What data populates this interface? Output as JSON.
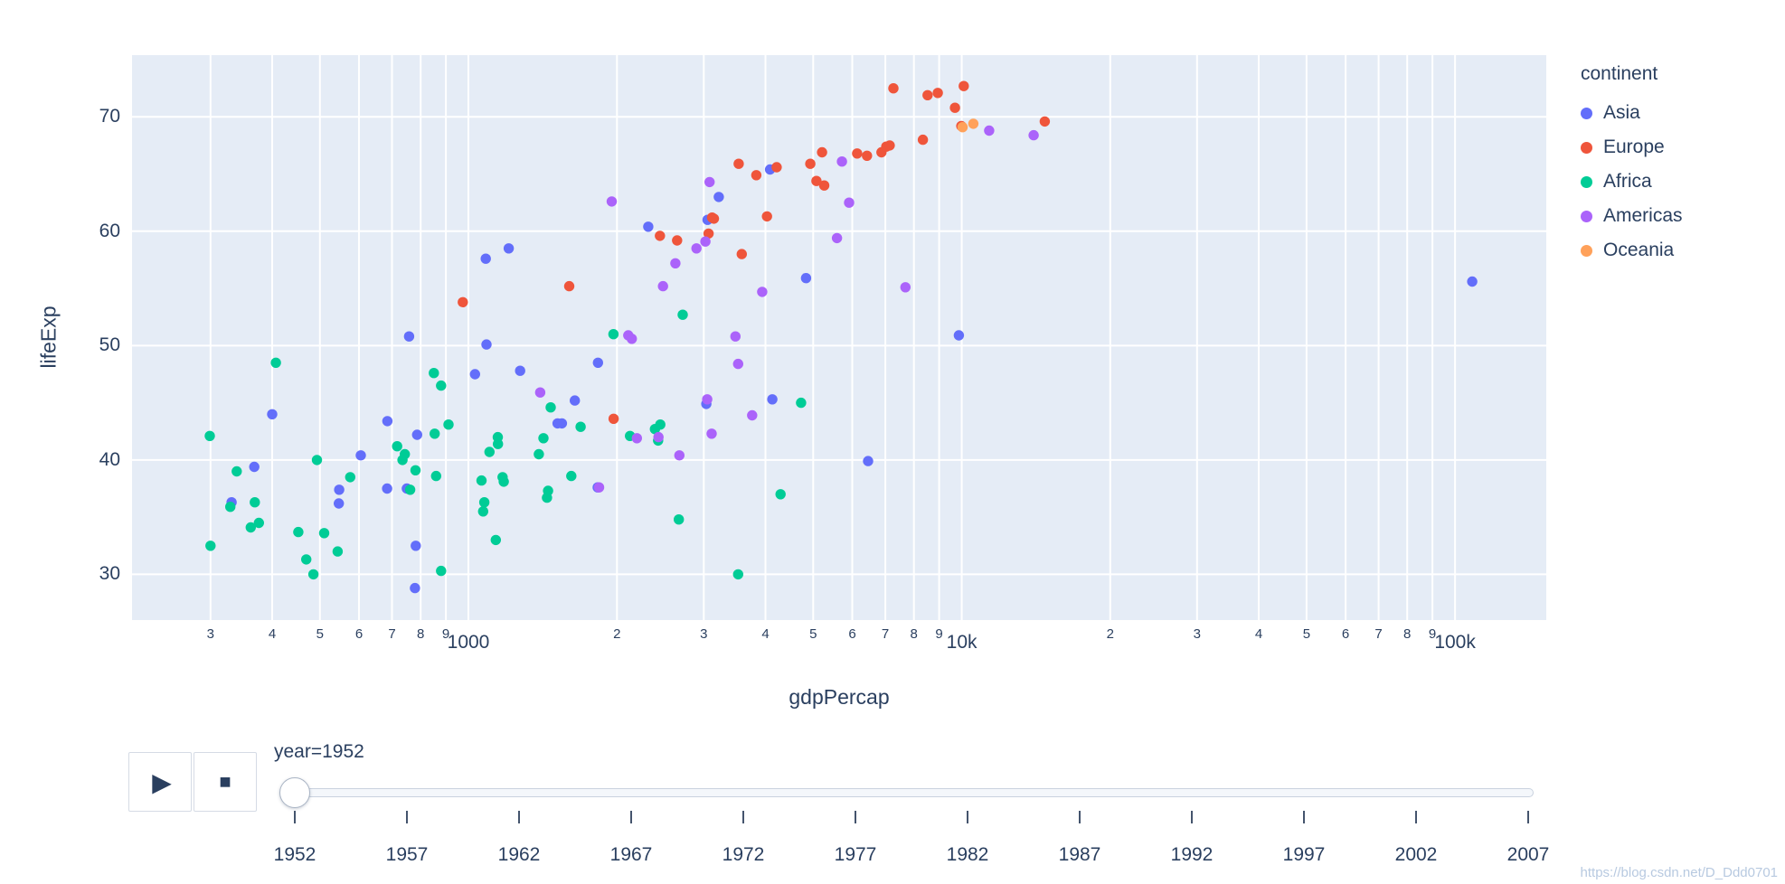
{
  "chart_data": {
    "type": "scatter",
    "title": "",
    "xlabel": "gdpPercap",
    "ylabel": "lifeExp",
    "x_scale": "log10",
    "x_range_log10": [
      2.318,
      5.185
    ],
    "y_range": [
      26.0,
      75.4
    ],
    "y_ticks": [
      30,
      40,
      50,
      60,
      70
    ],
    "x_ticks": [
      {
        "v": 300,
        "label": "3"
      },
      {
        "v": 400,
        "label": "4"
      },
      {
        "v": 500,
        "label": "5"
      },
      {
        "v": 600,
        "label": "6"
      },
      {
        "v": 700,
        "label": "7"
      },
      {
        "v": 800,
        "label": "8"
      },
      {
        "v": 900,
        "label": "9"
      },
      {
        "v": 1000,
        "label": "1000",
        "major": true
      },
      {
        "v": 2000,
        "label": "2"
      },
      {
        "v": 3000,
        "label": "3"
      },
      {
        "v": 4000,
        "label": "4"
      },
      {
        "v": 5000,
        "label": "5"
      },
      {
        "v": 6000,
        "label": "6"
      },
      {
        "v": 7000,
        "label": "7"
      },
      {
        "v": 8000,
        "label": "8"
      },
      {
        "v": 9000,
        "label": "9"
      },
      {
        "v": 10000,
        "label": "10k",
        "major": true
      },
      {
        "v": 20000,
        "label": "2"
      },
      {
        "v": 30000,
        "label": "3"
      },
      {
        "v": 40000,
        "label": "4"
      },
      {
        "v": 50000,
        "label": "5"
      },
      {
        "v": 60000,
        "label": "6"
      },
      {
        "v": 70000,
        "label": "7"
      },
      {
        "v": 80000,
        "label": "8"
      },
      {
        "v": 90000,
        "label": "9"
      },
      {
        "v": 100000,
        "label": "100k",
        "major": true
      }
    ],
    "grid": true,
    "legend_title": "continent",
    "legend_position": "right",
    "series": [
      {
        "name": "Asia",
        "color": "#636efa",
        "points": [
          [
            779,
            28.8
          ],
          [
            9867,
            50.9
          ],
          [
            684,
            37.5
          ],
          [
            368,
            39.4
          ],
          [
            400,
            44.0
          ],
          [
            3054,
            61.0
          ],
          [
            547,
            37.4
          ],
          [
            750,
            37.5
          ],
          [
            3035,
            44.9
          ],
          [
            4130,
            45.3
          ],
          [
            4087,
            65.4
          ],
          [
            3217,
            63.0
          ],
          [
            1547,
            43.2
          ],
          [
            1088,
            50.1
          ],
          [
            1031,
            47.5
          ],
          [
            108382,
            55.6
          ],
          [
            4835,
            55.9
          ],
          [
            1831,
            48.5
          ],
          [
            787,
            42.2
          ],
          [
            331,
            36.3
          ],
          [
            546,
            36.2
          ],
          [
            1828,
            37.6
          ],
          [
            685,
            43.4
          ],
          [
            1273,
            47.8
          ],
          [
            6460,
            39.9
          ],
          [
            2315,
            60.4
          ],
          [
            1084,
            57.6
          ],
          [
            1643,
            45.2
          ],
          [
            1207,
            58.5
          ],
          [
            758,
            50.8
          ],
          [
            605,
            40.4
          ],
          [
            1516,
            43.2
          ],
          [
            782,
            32.5
          ]
        ]
      },
      {
        "name": "Europe",
        "color": "#ef553b",
        "points": [
          [
            1601,
            55.2
          ],
          [
            6137,
            66.8
          ],
          [
            8343,
            68.0
          ],
          [
            974,
            53.8
          ],
          [
            2444,
            59.6
          ],
          [
            3119,
            61.2
          ],
          [
            6876,
            66.9
          ],
          [
            9692,
            70.8
          ],
          [
            6425,
            66.6
          ],
          [
            7030,
            67.4
          ],
          [
            7144,
            67.5
          ],
          [
            3531,
            65.9
          ],
          [
            5264,
            64.0
          ],
          [
            7268,
            72.5
          ],
          [
            5210,
            66.9
          ],
          [
            4931,
            65.9
          ],
          [
            2648,
            59.2
          ],
          [
            8942,
            72.1
          ],
          [
            10095,
            72.7
          ],
          [
            4029,
            61.3
          ],
          [
            3068,
            59.8
          ],
          [
            3145,
            61.1
          ],
          [
            3581,
            58.0
          ],
          [
            5075,
            64.4
          ],
          [
            4215,
            65.6
          ],
          [
            3834,
            64.9
          ],
          [
            8528,
            71.9
          ],
          [
            14734,
            69.6
          ],
          [
            1969,
            43.6
          ],
          [
            9980,
            69.2
          ]
        ]
      },
      {
        "name": "Africa",
        "color": "#00cc96",
        "points": [
          [
            2449,
            43.1
          ],
          [
            3521,
            30.0
          ],
          [
            1063,
            38.2
          ],
          [
            851,
            47.6
          ],
          [
            543,
            32.0
          ],
          [
            339,
            39.0
          ],
          [
            1173,
            38.5
          ],
          [
            1071,
            35.5
          ],
          [
            1179,
            38.1
          ],
          [
            1103,
            40.7
          ],
          [
            781,
            39.1
          ],
          [
            2126,
            42.1
          ],
          [
            1389,
            40.5
          ],
          [
            2670,
            34.8
          ],
          [
            1419,
            41.9
          ],
          [
            376,
            34.5
          ],
          [
            329,
            35.9
          ],
          [
            362,
            34.1
          ],
          [
            4293,
            37.0
          ],
          [
            485,
            30.0
          ],
          [
            911,
            43.1
          ],
          [
            510,
            33.6
          ],
          [
            300,
            32.5
          ],
          [
            854,
            42.3
          ],
          [
            299,
            42.1
          ],
          [
            576,
            38.5
          ],
          [
            2388,
            42.7
          ],
          [
            1443,
            36.7
          ],
          [
            369,
            36.3
          ],
          [
            452,
            33.7
          ],
          [
            743,
            40.5
          ],
          [
            1968,
            51.0
          ],
          [
            1688,
            42.9
          ],
          [
            469,
            31.3
          ],
          [
            2424,
            41.7
          ],
          [
            762,
            37.4
          ],
          [
            1077,
            36.3
          ],
          [
            2719,
            52.7
          ],
          [
            493,
            40.0
          ],
          [
            880,
            46.5
          ],
          [
            1450,
            37.3
          ],
          [
            880,
            30.3
          ],
          [
            1136,
            33.0
          ],
          [
            4725,
            45.0
          ],
          [
            1616,
            38.6
          ],
          [
            1148,
            41.4
          ],
          [
            717,
            41.2
          ],
          [
            860,
            38.6
          ],
          [
            1468,
            44.6
          ],
          [
            735,
            40.0
          ],
          [
            1147,
            42.0
          ],
          [
            407,
            48.5
          ]
        ]
      },
      {
        "name": "Americas",
        "color": "#ab63fa",
        "points": [
          [
            5911,
            62.5
          ],
          [
            2677,
            40.4
          ],
          [
            2109,
            50.9
          ],
          [
            11367,
            68.8
          ],
          [
            3940,
            54.7
          ],
          [
            2144,
            50.6
          ],
          [
            2627,
            57.2
          ],
          [
            5587,
            59.4
          ],
          [
            1398,
            45.9
          ],
          [
            3522,
            48.4
          ],
          [
            3048,
            45.3
          ],
          [
            2428,
            42.0
          ],
          [
            1840,
            37.6
          ],
          [
            2195,
            41.9
          ],
          [
            2899,
            58.5
          ],
          [
            3478,
            50.8
          ],
          [
            3112,
            42.3
          ],
          [
            2480,
            55.2
          ],
          [
            1952,
            62.6
          ],
          [
            3759,
            43.9
          ],
          [
            3082,
            64.3
          ],
          [
            3023,
            59.1
          ],
          [
            13990,
            68.4
          ],
          [
            5717,
            66.1
          ],
          [
            7690,
            55.1
          ]
        ]
      },
      {
        "name": "Oceania",
        "color": "#ffa15a",
        "points": [
          [
            10040,
            69.1
          ],
          [
            10557,
            69.4
          ]
        ]
      }
    ]
  },
  "controls": {
    "play_icon": "▶",
    "stop_icon": "■"
  },
  "slider": {
    "label": "year=1952",
    "current_year": "1952",
    "years": [
      "1952",
      "1957",
      "1962",
      "1967",
      "1972",
      "1977",
      "1982",
      "1987",
      "1992",
      "1997",
      "2002",
      "2007"
    ]
  },
  "watermark": "https://blog.csdn.net/D_Ddd0701",
  "colors": {
    "plot_bg": "#e5ecf6",
    "grid": "#ffffff",
    "text": "#2a3f5f"
  }
}
